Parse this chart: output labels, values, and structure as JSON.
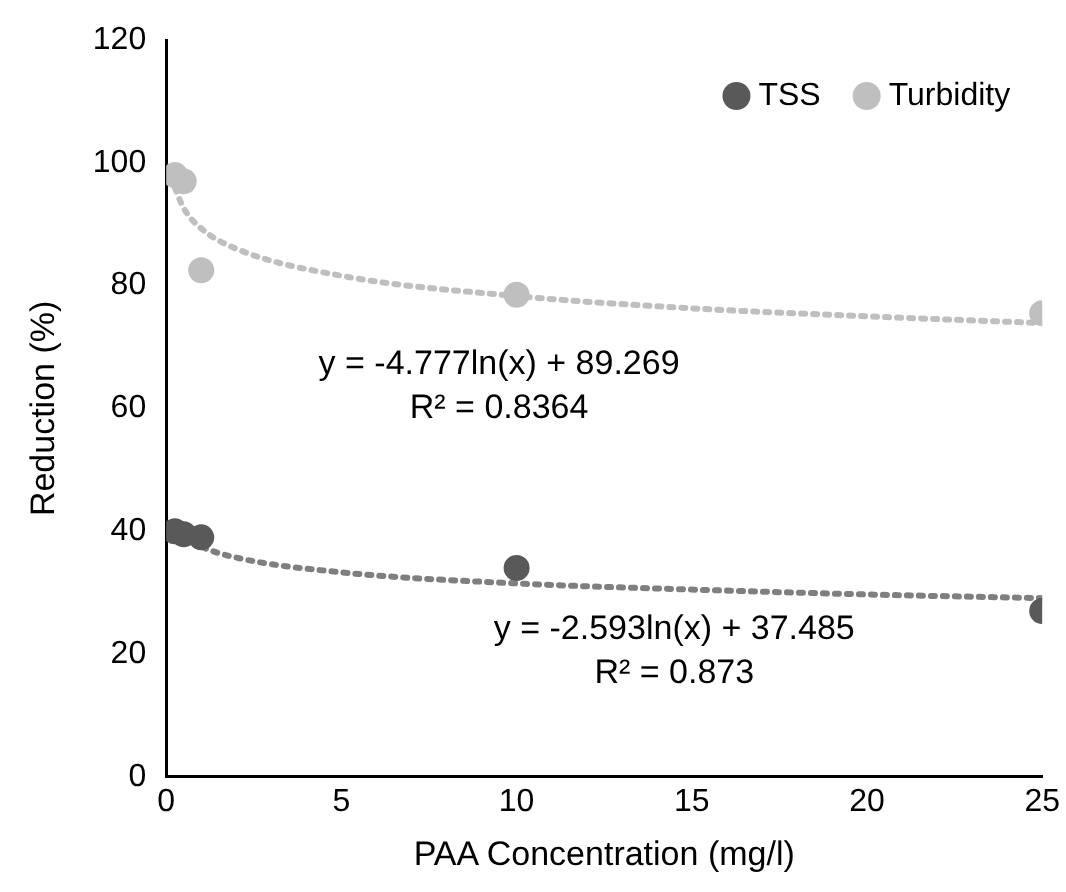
{
  "chart_data": {
    "type": "scatter",
    "xlabel": "PAA Concentration (mg/l)",
    "ylabel": "Reduction (%)",
    "xlim": [
      0,
      25
    ],
    "xticks": [
      0,
      5,
      10,
      15,
      20,
      25
    ],
    "ylim": [
      0,
      120
    ],
    "yticks": [
      0,
      20,
      40,
      60,
      80,
      100,
      120
    ],
    "grid": false,
    "legend": "top right",
    "marker": "circle",
    "series": [
      {
        "name": "TSS",
        "color": "#595959",
        "x": [
          0.25,
          0.5,
          1,
          10,
          25
        ],
        "values": [
          40,
          39.5,
          39,
          34,
          27
        ]
      },
      {
        "name": "Turbidity",
        "color": "#bfbfbf",
        "x": [
          0.25,
          0.5,
          1,
          10,
          25
        ],
        "values": [
          98,
          97,
          82.5,
          78.5,
          75.5
        ]
      },
      {
        "type": "line",
        "color": "#7f7f7f",
        "line_style": "dotted",
        "marker": "none",
        "x": [
          0.25,
          0.5,
          1,
          2,
          5,
          10,
          15,
          20,
          25
        ],
        "values": [
          41.1,
          39.3,
          37.5,
          35.7,
          33.3,
          31.5,
          30.5,
          29.7,
          29.1
        ]
      },
      {
        "type": "line",
        "color": "#bfbfbf",
        "line_style": "dotted",
        "marker": "none",
        "x": [
          0.25,
          0.5,
          1,
          2,
          5,
          10,
          15,
          20,
          25
        ],
        "values": [
          95.9,
          92.6,
          89.3,
          86,
          81.6,
          78.3,
          76.3,
          75,
          73.9
        ]
      }
    ],
    "annotations": [
      "y = -4.777ln(x) + 89.269",
      "R² = 0.8364",
      "y = -2.593ln(x) + 37.485",
      "R² = 0.873"
    ]
  }
}
